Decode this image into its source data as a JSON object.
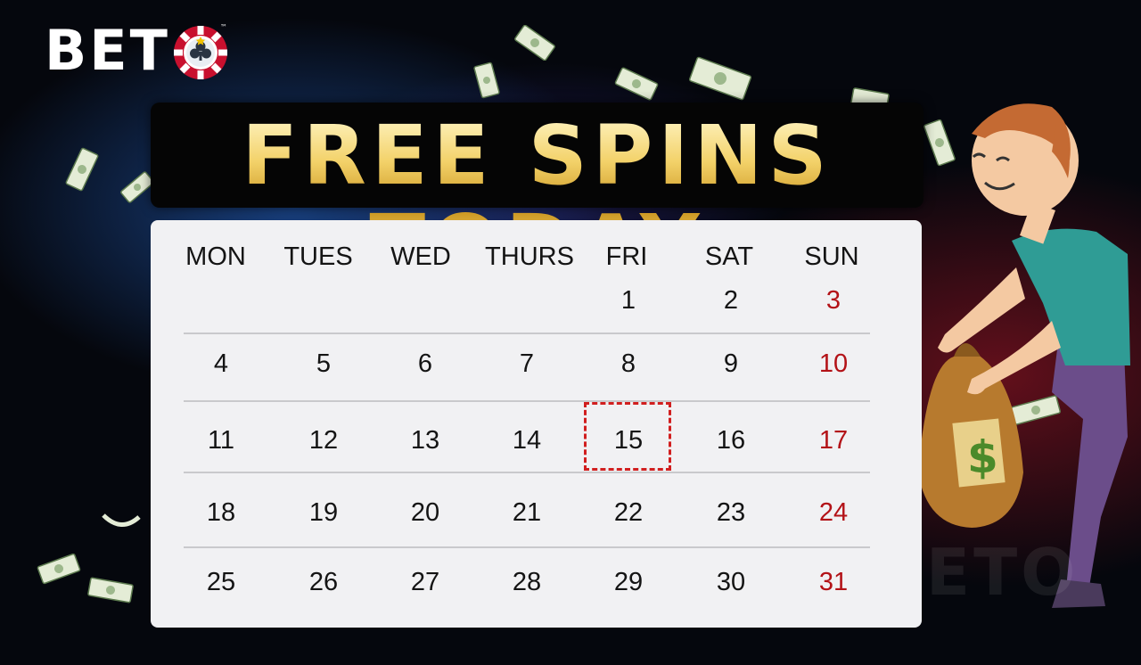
{
  "logo": {
    "text": "BETO",
    "visible_text": "BET",
    "trademark": "™"
  },
  "banner": {
    "title": "FREE SPINS TODAY"
  },
  "calendar": {
    "weekdays": [
      "MON",
      "TUES",
      "WED",
      "THURS",
      "FRI",
      "SAT",
      "SUN"
    ],
    "weeks": [
      [
        "",
        "",
        "",
        "",
        "1",
        "2",
        "3"
      ],
      [
        "4",
        "5",
        "6",
        "7",
        "8",
        "9",
        "10"
      ],
      [
        "11",
        "12",
        "13",
        "14",
        "15",
        "16",
        "17"
      ],
      [
        "18",
        "19",
        "20",
        "21",
        "22",
        "23",
        "24"
      ],
      [
        "25",
        "26",
        "27",
        "28",
        "29",
        "30",
        "31"
      ]
    ],
    "highlighted_day": "15",
    "sunday_color": "#b31217",
    "highlight_color": "#d11f1f"
  },
  "watermark": {
    "text": "BETO"
  },
  "colors": {
    "gold": "#d9a93a",
    "background": "#05070d",
    "calendar_bg": "#f1f1f3"
  }
}
